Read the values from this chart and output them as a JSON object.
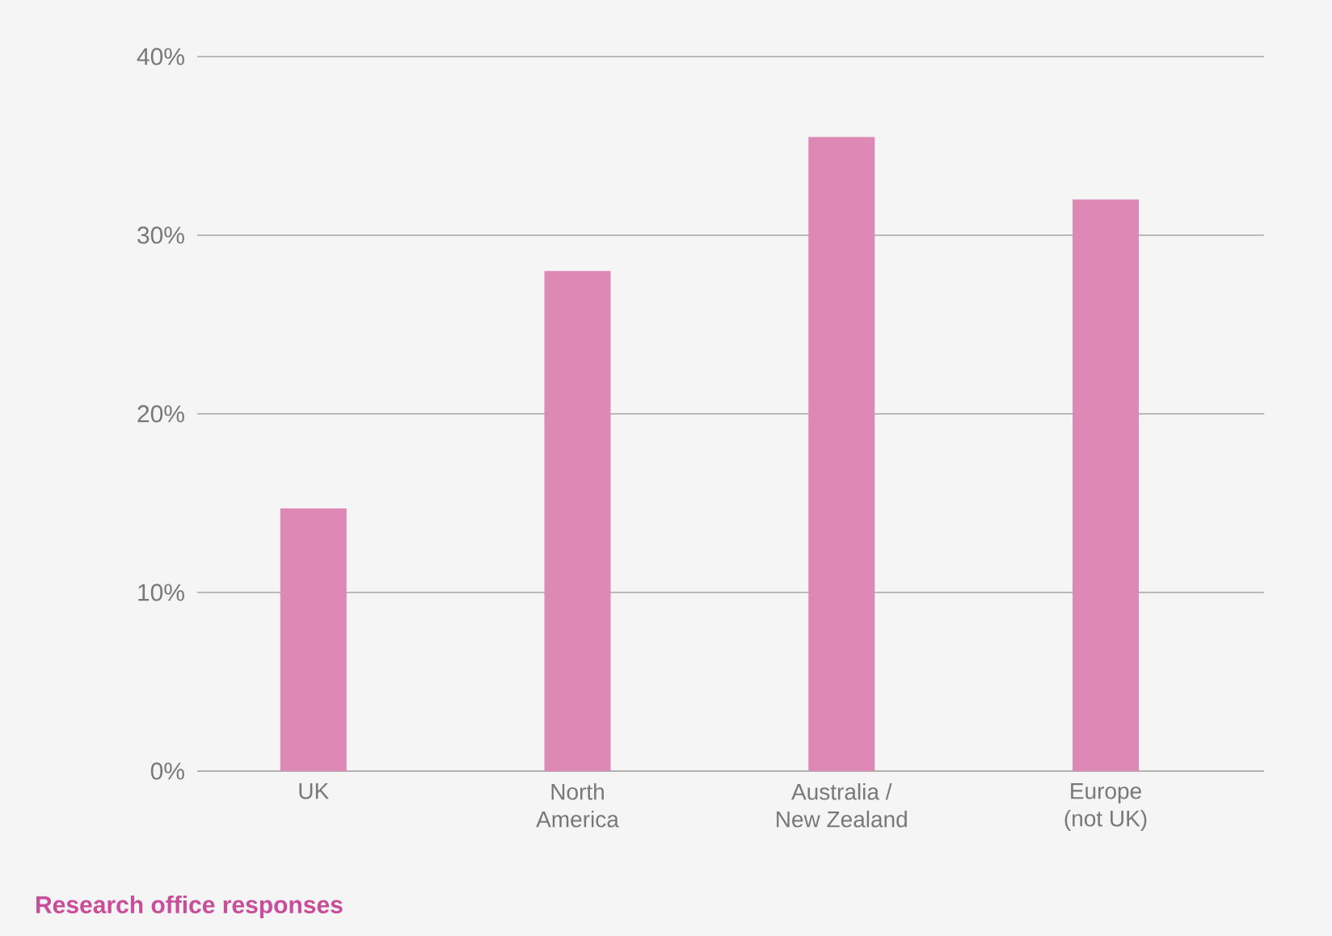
{
  "chart_data": {
    "type": "bar",
    "categories": [
      "UK",
      "North\nAmerica",
      "Australia /\nNew Zealand",
      "Europe\n(not UK)"
    ],
    "values": [
      14.7,
      28,
      35.5,
      32
    ],
    "color": "#de88b6",
    "ylim": [
      0,
      40
    ],
    "yticks": [
      {
        "value": 0,
        "label": "0%"
      },
      {
        "value": 10,
        "label": "10%"
      },
      {
        "value": 20,
        "label": "20%"
      },
      {
        "value": 30,
        "label": "30%"
      },
      {
        "value": 40,
        "label": "40%"
      }
    ],
    "grid": "y",
    "annotations": [
      "Research office responses"
    ]
  }
}
